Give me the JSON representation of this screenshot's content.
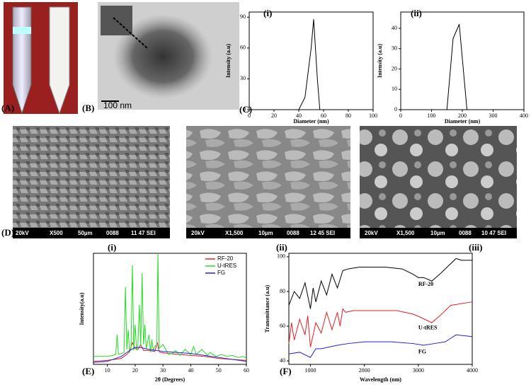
{
  "panels": {
    "labels": [
      "(A)",
      "(B)",
      "(C)",
      "(D)",
      "(E)",
      "(F)"
    ],
    "scale_bar": "100 nm"
  },
  "sem": {
    "sublabels": [
      "(i)",
      "(ii)",
      "(iii)"
    ],
    "bars": [
      [
        "20kV",
        "X500",
        "50µm",
        "0088",
        "11 47 SEI"
      ],
      [
        "20kV",
        "X1,500",
        "10µm",
        "0088",
        "12 45 SEI"
      ],
      [
        "20kV",
        "X1,500",
        "10µm",
        "0088",
        "10 47 SEI"
      ]
    ]
  },
  "chart_data": [
    {
      "type": "line",
      "label": "(i)",
      "xlabel": "Diameter (nm)",
      "ylabel": "Intensity (a.u)",
      "xlim": [
        0,
        100
      ],
      "xticks": [
        0,
        20,
        40,
        60,
        80,
        100
      ],
      "ylim": [
        0,
        95
      ],
      "yticks": [
        0,
        30,
        60,
        90
      ],
      "series": [
        {
          "color": "#000000",
          "x": [
            40,
            45,
            50,
            52,
            55,
            57
          ],
          "values": [
            0,
            12,
            60,
            88,
            30,
            0
          ]
        }
      ]
    },
    {
      "type": "line",
      "label": "(ii)",
      "xlabel": "Diameter (nm)",
      "ylabel": "Intensity (a.u)",
      "xlim": [
        0,
        400
      ],
      "xticks": [
        0,
        100,
        200,
        300,
        400
      ],
      "ylim": [
        0,
        48
      ],
      "yticks": [
        0,
        10,
        20,
        30,
        40
      ],
      "series": [
        {
          "color": "#000000",
          "x": [
            150,
            170,
            190,
            215
          ],
          "values": [
            0,
            35,
            42,
            0
          ]
        }
      ]
    },
    {
      "type": "line",
      "xlabel": "2θ (Degrees)",
      "ylabel": "Intensity(a.u)",
      "xlim": [
        5,
        60
      ],
      "xticks": [
        10,
        20,
        30,
        40,
        50,
        60
      ],
      "ylim": [
        0,
        112
      ],
      "legend": "upper right",
      "series": [
        {
          "name": "RF-20",
          "color": "#e02020",
          "x": [
            5,
            10,
            15,
            17,
            18,
            19,
            20,
            21,
            22,
            23,
            25,
            27,
            28,
            28.5,
            29,
            32,
            36,
            40,
            45,
            50,
            55,
            60
          ],
          "values": [
            3,
            4,
            6,
            10,
            13,
            22,
            16,
            15,
            20,
            14,
            14,
            13,
            22,
            14,
            12,
            11,
            10,
            9,
            8,
            6,
            5,
            4
          ]
        },
        {
          "name": "U-tRES",
          "color": "#22dd22",
          "x": [
            5,
            10,
            12,
            13,
            13.5,
            14,
            16,
            16.5,
            17,
            17.5,
            18,
            18.5,
            19,
            19.5,
            20,
            20.5,
            21,
            21.5,
            22,
            22.5,
            23,
            23.5,
            24,
            25,
            25.5,
            26,
            26.5,
            27,
            27.8,
            28.2,
            28.6,
            30,
            32,
            34,
            34.5,
            36,
            38,
            40,
            41,
            42,
            44,
            46,
            47,
            49,
            51,
            53,
            55,
            57,
            59,
            60
          ],
          "values": [
            8,
            8,
            9,
            10,
            30,
            10,
            12,
            78,
            15,
            35,
            12,
            16,
            100,
            14,
            40,
            14,
            20,
            60,
            18,
            92,
            20,
            40,
            16,
            30,
            12,
            25,
            14,
            18,
            20,
            112,
            16,
            20,
            10,
            12,
            14,
            9,
            15,
            10,
            18,
            10,
            15,
            9,
            12,
            8,
            10,
            8,
            9,
            7,
            8,
            6
          ]
        },
        {
          "name": "FG",
          "color": "#2020dd",
          "x": [
            5,
            10,
            15,
            18,
            20,
            22,
            25,
            30,
            35,
            40,
            45,
            50,
            55,
            60
          ],
          "values": [
            2,
            3,
            8,
            14,
            17,
            17,
            15,
            13,
            12,
            11,
            9,
            7,
            5,
            3
          ]
        }
      ]
    },
    {
      "type": "line",
      "xlabel": "Wavelength (nm)",
      "ylabel": "Transmittance (a.u)",
      "xlim": [
        600,
        4000
      ],
      "xticks": [
        1000,
        2000,
        3000,
        4000
      ],
      "ylim": [
        38,
        102
      ],
      "yticks": [
        40,
        60,
        80,
        100
      ],
      "series": [
        {
          "name": "RF-20",
          "color": "#000000",
          "x": [
            600,
            700,
            800,
            900,
            1000,
            1050,
            1100,
            1200,
            1300,
            1400,
            1500,
            1600,
            1700,
            1900,
            2100,
            2400,
            2700,
            2900,
            3000,
            3100,
            3250,
            3400,
            3600,
            3700,
            3800,
            4000
          ],
          "values": [
            72,
            80,
            76,
            85,
            70,
            82,
            74,
            86,
            78,
            90,
            82,
            92,
            93,
            94,
            94,
            94,
            93,
            90,
            88,
            88,
            86,
            90,
            96,
            99,
            98,
            98
          ]
        },
        {
          "name": "U-tRES",
          "color": "#e02020",
          "x": [
            600,
            650,
            700,
            800,
            900,
            950,
            1000,
            1100,
            1200,
            1300,
            1400,
            1500,
            1550,
            1600,
            1650,
            1800,
            2200,
            2600,
            2900,
            3050,
            3250,
            3400,
            3600,
            4000
          ],
          "values": [
            50,
            62,
            52,
            64,
            55,
            66,
            48,
            62,
            56,
            68,
            58,
            68,
            60,
            70,
            68,
            69,
            69,
            69,
            67,
            65,
            62,
            66,
            72,
            74
          ]
        },
        {
          "name": "FG",
          "color": "#2020dd",
          "x": [
            600,
            800,
            1000,
            1100,
            1200,
            1500,
            1700,
            2000,
            2500,
            2900,
            3100,
            3300,
            3500,
            3700,
            4000
          ],
          "values": [
            44,
            45,
            42,
            47,
            47,
            49,
            50,
            51,
            51,
            50,
            49,
            50,
            51,
            55,
            54
          ]
        }
      ]
    }
  ]
}
